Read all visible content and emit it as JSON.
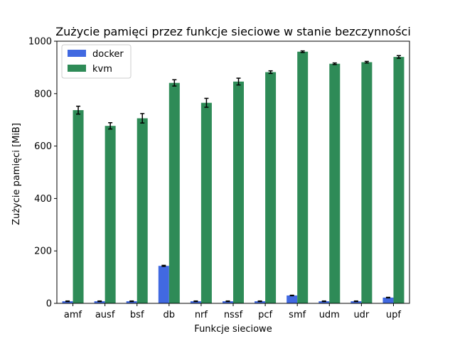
{
  "chart_data": {
    "type": "bar",
    "title": "Zużycie pamięci przez funkcje sieciowe w stanie bezczynności",
    "xlabel": "Funkcje sieciowe",
    "ylabel": "Zużycie pamięci [MiB]",
    "categories": [
      "amf",
      "ausf",
      "bsf",
      "db",
      "nrf",
      "nssf",
      "pcf",
      "smf",
      "udm",
      "udr",
      "upf"
    ],
    "ylim": [
      0,
      1000
    ],
    "yticks": [
      0,
      200,
      400,
      600,
      800,
      1000
    ],
    "grid": false,
    "legend_position": "top-left",
    "series": [
      {
        "name": "docker",
        "color": "#4169e1",
        "values": [
          8,
          8,
          8,
          143,
          8,
          8,
          8,
          30,
          8,
          8,
          22
        ],
        "errors": [
          1,
          1,
          1,
          2,
          1,
          1,
          1,
          1,
          1,
          1,
          1
        ]
      },
      {
        "name": "kvm",
        "color": "#2e8b57",
        "values": [
          737,
          677,
          706,
          841,
          765,
          846,
          882,
          960,
          914,
          920,
          940
        ],
        "errors": [
          15,
          12,
          18,
          12,
          17,
          13,
          5,
          3,
          3,
          3,
          5
        ]
      }
    ]
  }
}
